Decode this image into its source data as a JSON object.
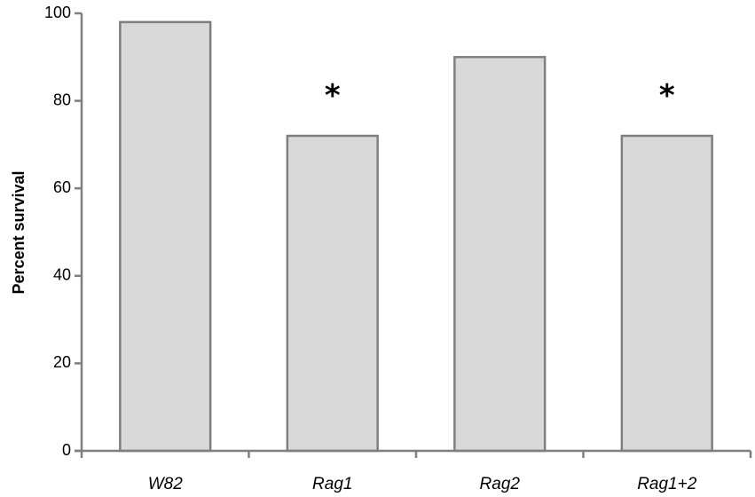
{
  "chart_data": {
    "type": "bar",
    "categories": [
      "W82",
      "Rag1",
      "Rag2",
      "Rag1+2"
    ],
    "values": [
      98,
      72,
      90,
      72
    ],
    "annotations": [
      "",
      "*",
      "",
      "*"
    ],
    "title": "",
    "xlabel": "",
    "ylabel": "Percent survival",
    "ylim": [
      0,
      100
    ],
    "yticks": [
      0,
      20,
      40,
      60,
      80,
      100
    ],
    "grid": false,
    "colors": {
      "bar_fill": "#d9d9d9",
      "bar_stroke": "#7f7f7f",
      "axis": "#7f7f7f"
    }
  }
}
